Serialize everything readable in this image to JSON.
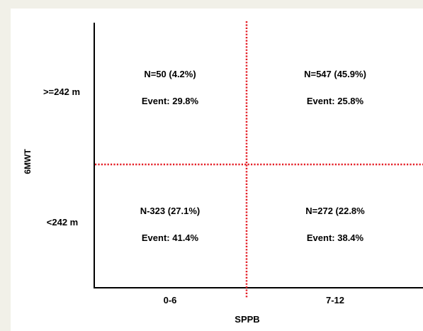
{
  "chart_data": {
    "type": "table",
    "xlabel": "SPPB",
    "ylabel": "6MWT",
    "x_categories": [
      "0-6",
      "7-12"
    ],
    "y_categories": [
      ">=242 m",
      "<242 m"
    ],
    "cells": [
      {
        "x": "0-6",
        "y": ">=242 m",
        "n_text": "N=50 (4.2%)",
        "event_text": "Event: 29.8%",
        "n": 50,
        "n_pct": 4.2,
        "event_pct": 29.8
      },
      {
        "x": "7-12",
        "y": ">=242 m",
        "n_text": "N=547 (45.9%)",
        "event_text": "Event: 25.8%",
        "n": 547,
        "n_pct": 45.9,
        "event_pct": 25.8
      },
      {
        "x": "0-6",
        "y": "<242 m",
        "n_text": "N-323 (27.1%)",
        "event_text": "Event: 41.4%",
        "n": 323,
        "n_pct": 27.1,
        "event_pct": 41.4
      },
      {
        "x": "7-12",
        "y": "<242 m",
        "n_text": "N=272 (22.8%",
        "event_text": "Event: 38.4%",
        "n": 272,
        "n_pct": 22.8,
        "event_pct": 38.4
      }
    ],
    "divider_color": "#e41e26",
    "axis_color": "#000000",
    "grid": false
  }
}
